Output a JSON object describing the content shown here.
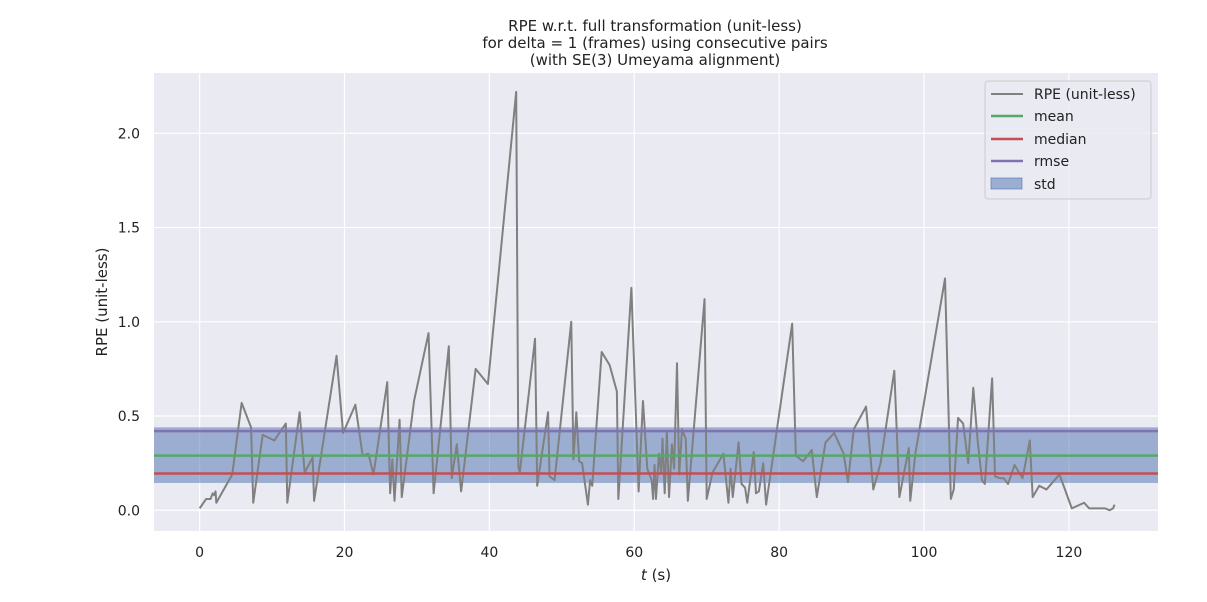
{
  "chart_data": {
    "type": "line",
    "title_lines": [
      "RPE w.r.t. full transformation (unit-less)",
      "for delta = 1 (frames) using consecutive pairs",
      "(with SE(3) Umeyama alignment)"
    ],
    "xlabel_italic": "t",
    "xlabel_rest": " (s)",
    "ylabel": "RPE (unit-less)",
    "xlim": [
      -6.3,
      132.3
    ],
    "ylim": [
      -0.11,
      2.32
    ],
    "xticks": [
      0,
      20,
      40,
      60,
      80,
      100,
      120
    ],
    "xtick_labels": [
      "0",
      "20",
      "40",
      "60",
      "80",
      "100",
      "120"
    ],
    "yticks": [
      0.0,
      0.5,
      1.0,
      1.5,
      2.0
    ],
    "ytick_labels": [
      "0.0",
      "0.5",
      "1.0",
      "1.5",
      "2.0"
    ],
    "grid": true,
    "background": "#eaeaf2",
    "legend_position": "top-right",
    "legend": [
      {
        "label": "RPE (unit-less)",
        "kind": "line",
        "color": "#808080"
      },
      {
        "label": "mean",
        "kind": "line",
        "color": "#55a868"
      },
      {
        "label": "median",
        "kind": "line",
        "color": "#c44e52"
      },
      {
        "label": "rmse",
        "kind": "line",
        "color": "#8172b3"
      },
      {
        "label": "std",
        "kind": "band",
        "color": "#4c72b0"
      }
    ],
    "stats": {
      "mean": 0.29,
      "median": 0.195,
      "rmse": 0.42,
      "std_band": [
        0.145,
        0.44
      ]
    },
    "series": [
      {
        "name": "RPE (unit-less)",
        "color": "#808080",
        "points": [
          [
            0.0,
            0.01
          ],
          [
            0.9,
            0.06
          ],
          [
            1.5,
            0.06
          ],
          [
            1.8,
            0.09
          ],
          [
            2.0,
            0.08
          ],
          [
            2.2,
            0.1
          ],
          [
            2.3,
            0.04
          ],
          [
            4.5,
            0.19
          ],
          [
            5.8,
            0.57
          ],
          [
            7.1,
            0.44
          ],
          [
            7.4,
            0.04
          ],
          [
            8.7,
            0.4
          ],
          [
            10.3,
            0.37
          ],
          [
            11.9,
            0.46
          ],
          [
            12.1,
            0.04
          ],
          [
            13.8,
            0.52
          ],
          [
            14.5,
            0.2
          ],
          [
            15.6,
            0.28
          ],
          [
            15.8,
            0.05
          ],
          [
            18.9,
            0.82
          ],
          [
            19.8,
            0.41
          ],
          [
            21.5,
            0.56
          ],
          [
            22.5,
            0.29
          ],
          [
            23.3,
            0.3
          ],
          [
            24.0,
            0.19
          ],
          [
            25.9,
            0.68
          ],
          [
            26.3,
            0.09
          ],
          [
            26.6,
            0.27
          ],
          [
            26.9,
            0.05
          ],
          [
            27.6,
            0.48
          ],
          [
            27.9,
            0.07
          ],
          [
            29.6,
            0.58
          ],
          [
            31.6,
            0.94
          ],
          [
            32.3,
            0.09
          ],
          [
            34.4,
            0.87
          ],
          [
            34.8,
            0.17
          ],
          [
            35.5,
            0.35
          ],
          [
            36.1,
            0.1
          ],
          [
            38.1,
            0.75
          ],
          [
            39.8,
            0.67
          ],
          [
            43.7,
            2.22
          ],
          [
            44.0,
            0.23
          ],
          [
            44.2,
            0.2
          ],
          [
            46.3,
            0.91
          ],
          [
            46.6,
            0.13
          ],
          [
            48.1,
            0.52
          ],
          [
            48.3,
            0.18
          ],
          [
            49.0,
            0.16
          ],
          [
            51.3,
            1.0
          ],
          [
            51.6,
            0.27
          ],
          [
            52.0,
            0.52
          ],
          [
            52.4,
            0.26
          ],
          [
            52.8,
            0.25
          ],
          [
            53.6,
            0.03
          ],
          [
            53.9,
            0.16
          ],
          [
            54.2,
            0.13
          ],
          [
            55.5,
            0.84
          ],
          [
            56.6,
            0.77
          ],
          [
            57.6,
            0.63
          ],
          [
            57.8,
            0.06
          ],
          [
            59.6,
            1.18
          ],
          [
            60.6,
            0.1
          ],
          [
            61.2,
            0.58
          ],
          [
            61.8,
            0.22
          ],
          [
            62.4,
            0.16
          ],
          [
            62.6,
            0.06
          ],
          [
            62.8,
            0.24
          ],
          [
            63.0,
            0.06
          ],
          [
            63.4,
            0.3
          ],
          [
            63.7,
            0.2
          ],
          [
            63.9,
            0.38
          ],
          [
            64.2,
            0.09
          ],
          [
            64.5,
            0.42
          ],
          [
            64.8,
            0.07
          ],
          [
            65.2,
            0.35
          ],
          [
            65.5,
            0.22
          ],
          [
            65.9,
            0.78
          ],
          [
            66.2,
            0.19
          ],
          [
            66.6,
            0.43
          ],
          [
            67.1,
            0.38
          ],
          [
            67.4,
            0.05
          ],
          [
            69.7,
            1.12
          ],
          [
            70.0,
            0.06
          ],
          [
            70.8,
            0.2
          ],
          [
            72.3,
            0.3
          ],
          [
            73.0,
            0.04
          ],
          [
            73.3,
            0.22
          ],
          [
            73.6,
            0.07
          ],
          [
            74.4,
            0.36
          ],
          [
            74.8,
            0.14
          ],
          [
            75.3,
            0.12
          ],
          [
            75.6,
            0.04
          ],
          [
            76.5,
            0.31
          ],
          [
            76.8,
            0.09
          ],
          [
            77.2,
            0.1
          ],
          [
            77.8,
            0.25
          ],
          [
            78.2,
            0.03
          ],
          [
            81.8,
            0.99
          ],
          [
            82.3,
            0.29
          ],
          [
            83.3,
            0.26
          ],
          [
            84.5,
            0.32
          ],
          [
            85.2,
            0.07
          ],
          [
            86.4,
            0.36
          ],
          [
            87.6,
            0.41
          ],
          [
            88.9,
            0.3
          ],
          [
            89.5,
            0.15
          ],
          [
            90.3,
            0.43
          ],
          [
            92.0,
            0.55
          ],
          [
            93.0,
            0.11
          ],
          [
            94.0,
            0.25
          ],
          [
            95.9,
            0.74
          ],
          [
            96.6,
            0.07
          ],
          [
            97.9,
            0.33
          ],
          [
            98.1,
            0.05
          ],
          [
            98.8,
            0.3
          ],
          [
            102.9,
            1.23
          ],
          [
            103.7,
            0.06
          ],
          [
            104.1,
            0.11
          ],
          [
            104.7,
            0.49
          ],
          [
            105.4,
            0.46
          ],
          [
            106.1,
            0.25
          ],
          [
            106.8,
            0.65
          ],
          [
            107.4,
            0.37
          ],
          [
            108.0,
            0.16
          ],
          [
            108.4,
            0.14
          ],
          [
            109.4,
            0.7
          ],
          [
            109.8,
            0.18
          ],
          [
            110.5,
            0.17
          ],
          [
            111.0,
            0.17
          ],
          [
            111.6,
            0.14
          ],
          [
            112.5,
            0.24
          ],
          [
            113.6,
            0.17
          ],
          [
            114.6,
            0.37
          ],
          [
            115.0,
            0.07
          ],
          [
            115.9,
            0.13
          ],
          [
            116.9,
            0.11
          ],
          [
            118.7,
            0.19
          ],
          [
            120.4,
            0.01
          ],
          [
            122.1,
            0.04
          ],
          [
            122.8,
            0.01
          ],
          [
            125.0,
            0.01
          ],
          [
            125.6,
            0.0
          ],
          [
            126.1,
            0.01
          ],
          [
            126.3,
            0.03
          ]
        ]
      }
    ]
  }
}
